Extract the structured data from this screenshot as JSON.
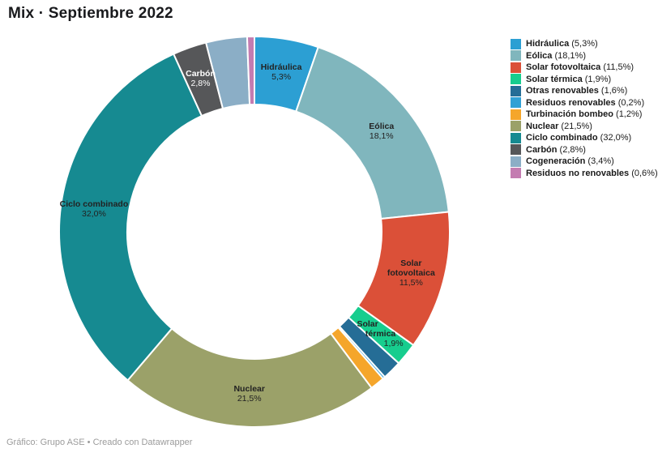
{
  "title": "Mix · Septiembre 2022",
  "footer": {
    "text": "Gráfico: Grupo ASE • Creado con Datawrapper"
  },
  "chart_data": {
    "type": "pie",
    "subtype": "donut",
    "title": "Mix · Septiembre 2022",
    "legend_position": "right",
    "start_angle_deg": 0,
    "direction": "clockwise",
    "slices": [
      {
        "name": "Hidráulica",
        "pct": 5.3,
        "value_label": "5,3%",
        "color": "#2C9FD3",
        "labeled": true,
        "name_lines": [
          "Hidráulica"
        ]
      },
      {
        "name": "Eólica",
        "pct": 18.1,
        "value_label": "18,1%",
        "color": "#80B6BD",
        "labeled": true,
        "name_lines": [
          "Eólica"
        ]
      },
      {
        "name": "Solar fotovoltaica",
        "pct": 11.5,
        "value_label": "11,5%",
        "color": "#DB5038",
        "labeled": true,
        "name_lines": [
          "Solar",
          "fotovoltaica"
        ]
      },
      {
        "name": "Solar térmica",
        "pct": 1.9,
        "value_label": "1,9%",
        "color": "#17CD8E",
        "labeled": true,
        "name_lines": [
          "Solar",
          "térmica"
        ],
        "label_style": "staggered"
      },
      {
        "name": "Otras renovables",
        "pct": 1.6,
        "value_label": "1,6%",
        "color": "#256D96",
        "labeled": false
      },
      {
        "name": "Residuos renovables",
        "pct": 0.2,
        "value_label": "0,2%",
        "color": "#31A1D5",
        "labeled": false
      },
      {
        "name": "Turbinación bombeo",
        "pct": 1.2,
        "value_label": "1,2%",
        "color": "#F5A62B",
        "labeled": false
      },
      {
        "name": "Nuclear",
        "pct": 21.5,
        "value_label": "21,5%",
        "color": "#9BA169",
        "labeled": true,
        "name_lines": [
          "Nuclear"
        ]
      },
      {
        "name": "Ciclo combinado",
        "pct": 32.0,
        "value_label": "32,0%",
        "color": "#168A91",
        "labeled": true,
        "name_lines": [
          "Ciclo combinado"
        ]
      },
      {
        "name": "Carbón",
        "pct": 2.8,
        "value_label": "2,8%",
        "color": "#565759",
        "labeled": true,
        "name_lines": [
          "Carbón"
        ],
        "label_light": true
      },
      {
        "name": "Cogeneración",
        "pct": 3.4,
        "value_label": "3,4%",
        "color": "#8BAEC6",
        "labeled": false
      },
      {
        "name": "Residuos no renovables",
        "pct": 0.6,
        "value_label": "0,6%",
        "color": "#C47CB1",
        "labeled": false
      }
    ]
  }
}
